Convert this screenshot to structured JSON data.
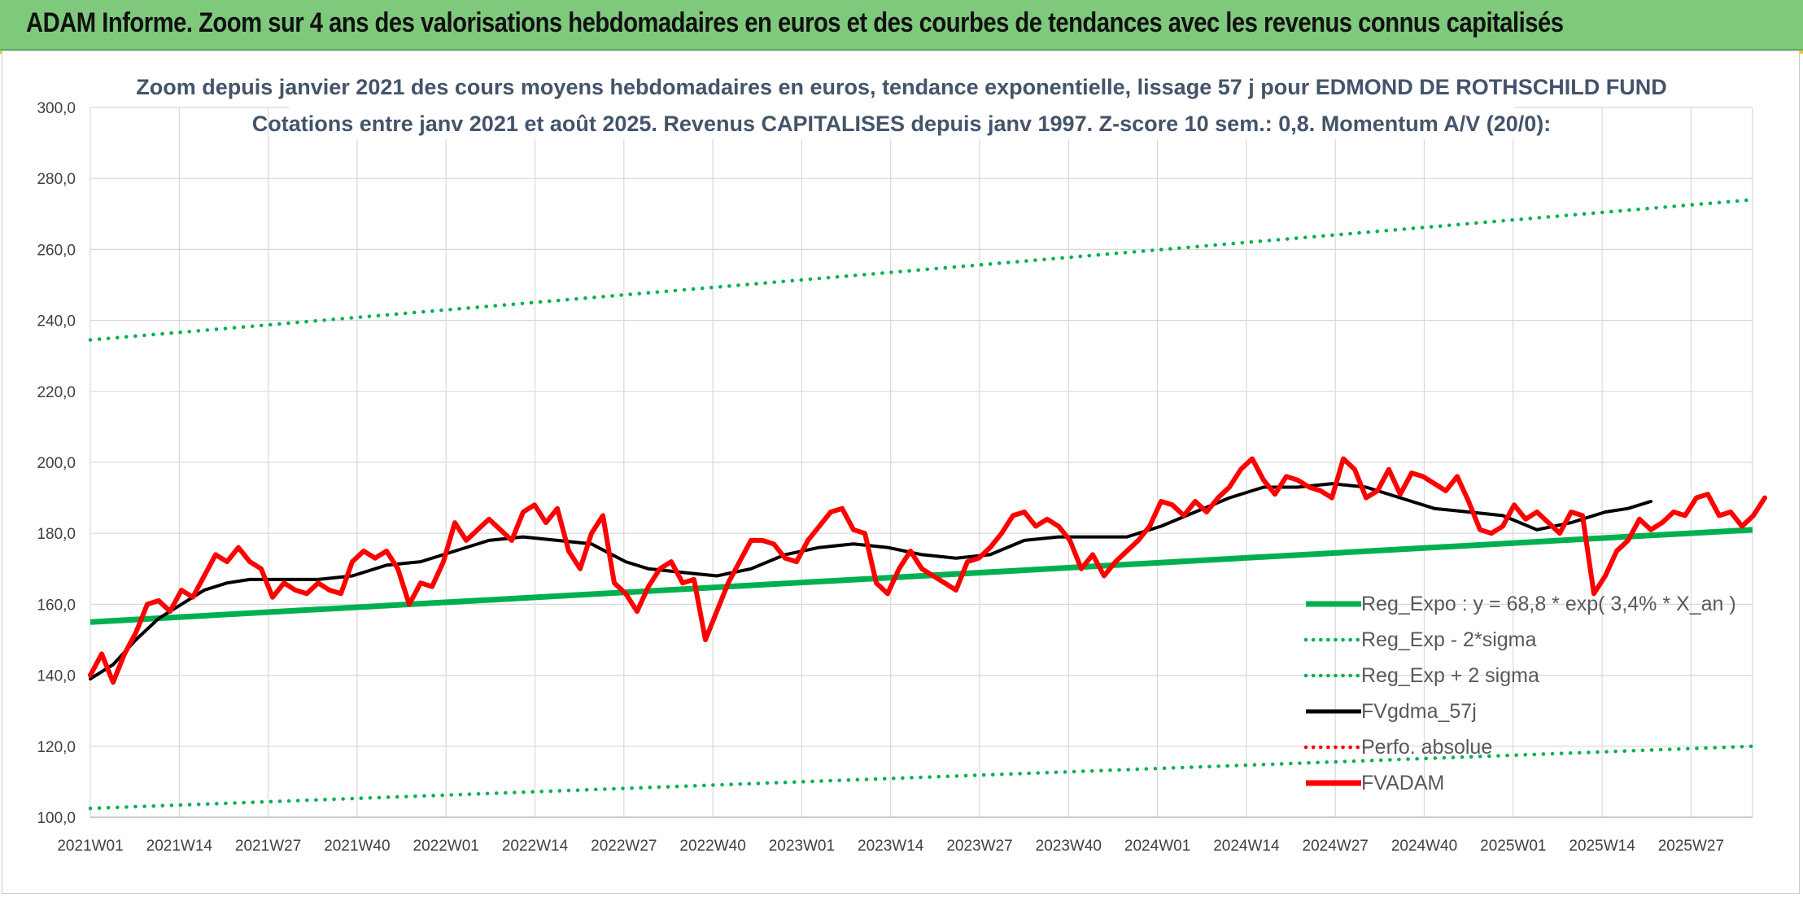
{
  "header": {
    "title": "ADAM Informe. Zoom sur 4 ans des valorisations hebdomadaires en euros et des courbes de tendances avec les revenus connus capitalisés"
  },
  "colors": {
    "banner": "#7ec97c",
    "trend_green": "#00b050",
    "price_red": "#ff0000",
    "smooth_black": "#000000",
    "title_text": "#44546a"
  },
  "chart_data": {
    "type": "line",
    "title": "Zoom depuis janvier 2021 des cours moyens hebdomadaires en euros, tendance exponentielle, lissage 57 j pour EDMOND DE ROTHSCHILD FUND",
    "subtitle": "Cotations entre janv 2021 et août 2025. Revenus CAPITALISES depuis janv 1997. Z-score 10 sem.: 0,8. Momentum A/V (20/0):",
    "xlabel": "",
    "ylabel": "",
    "ylim": [
      100,
      300
    ],
    "yticks": [
      "100,0",
      "120,0",
      "140,0",
      "160,0",
      "180,0",
      "200,0",
      "220,0",
      "240,0",
      "260,0",
      "280,0",
      "300,0"
    ],
    "x_tick_labels": [
      "2021W01",
      "2021W14",
      "2021W27",
      "2021W40",
      "2022W01",
      "2022W14",
      "2022W27",
      "2022W40",
      "2023W01",
      "2023W14",
      "2023W27",
      "2023W40",
      "2024W01",
      "2024W14",
      "2024W27",
      "2024W40",
      "2025W01",
      "2025W14",
      "2025W27"
    ],
    "x_range_weeks": [
      0,
      243
    ],
    "grid": true,
    "legend_position": "bottom-right",
    "series": [
      {
        "name": "Reg_Expo : y = 68,8 * exp( 3,4% *  X_an )",
        "style": "solid",
        "color": "#00b050",
        "start": 155.0,
        "end": 181.0
      },
      {
        "name": "Reg_Exp - 2*sigma",
        "style": "dotted",
        "color": "#00b050",
        "start": 102.5,
        "end": 120.0
      },
      {
        "name": "Reg_Exp + 2 sigma",
        "style": "dotted",
        "color": "#00b050",
        "start": 234.5,
        "end": 274.0
      },
      {
        "name": "FVgdma_57j",
        "style": "solid",
        "color": "#000000",
        "points": [
          [
            0,
            139
          ],
          [
            4,
            143
          ],
          [
            8,
            150
          ],
          [
            12,
            156
          ],
          [
            16,
            160
          ],
          [
            20,
            164
          ],
          [
            24,
            166
          ],
          [
            28,
            167
          ],
          [
            34,
            167
          ],
          [
            40,
            167
          ],
          [
            46,
            168
          ],
          [
            52,
            171
          ],
          [
            58,
            172
          ],
          [
            64,
            175
          ],
          [
            70,
            178
          ],
          [
            76,
            179
          ],
          [
            82,
            178
          ],
          [
            88,
            177
          ],
          [
            94,
            172
          ],
          [
            98,
            170
          ],
          [
            104,
            169
          ],
          [
            110,
            168
          ],
          [
            116,
            170
          ],
          [
            122,
            174
          ],
          [
            128,
            176
          ],
          [
            134,
            177
          ],
          [
            140,
            176
          ],
          [
            146,
            174
          ],
          [
            152,
            173
          ],
          [
            158,
            174
          ],
          [
            164,
            178
          ],
          [
            170,
            179
          ],
          [
            176,
            179
          ],
          [
            182,
            179
          ],
          [
            188,
            182
          ],
          [
            194,
            186
          ],
          [
            200,
            190
          ],
          [
            206,
            193
          ],
          [
            212,
            193
          ],
          [
            218,
            194
          ],
          [
            224,
            193
          ],
          [
            230,
            190
          ],
          [
            236,
            187
          ],
          [
            242,
            186
          ],
          [
            248,
            185
          ],
          [
            254,
            181
          ],
          [
            260,
            183
          ],
          [
            266,
            186
          ],
          [
            270,
            187
          ],
          [
            274,
            189
          ]
        ]
      },
      {
        "name": "Perfo. absolue",
        "style": "dotted",
        "color": "#ff0000",
        "points": []
      },
      {
        "name": "FVADAM",
        "style": "solid-thick",
        "color": "#ff0000",
        "points": [
          [
            0,
            140
          ],
          [
            2,
            146
          ],
          [
            4,
            138
          ],
          [
            6,
            146
          ],
          [
            8,
            152
          ],
          [
            10,
            160
          ],
          [
            12,
            161
          ],
          [
            14,
            158
          ],
          [
            16,
            164
          ],
          [
            18,
            162
          ],
          [
            20,
            168
          ],
          [
            22,
            174
          ],
          [
            24,
            172
          ],
          [
            26,
            176
          ],
          [
            28,
            172
          ],
          [
            30,
            170
          ],
          [
            32,
            162
          ],
          [
            34,
            166
          ],
          [
            36,
            164
          ],
          [
            38,
            163
          ],
          [
            40,
            166
          ],
          [
            42,
            164
          ],
          [
            44,
            163
          ],
          [
            46,
            172
          ],
          [
            48,
            175
          ],
          [
            50,
            173
          ],
          [
            52,
            175
          ],
          [
            54,
            170
          ],
          [
            56,
            160
          ],
          [
            58,
            166
          ],
          [
            60,
            165
          ],
          [
            62,
            172
          ],
          [
            64,
            183
          ],
          [
            66,
            178
          ],
          [
            68,
            181
          ],
          [
            70,
            184
          ],
          [
            72,
            181
          ],
          [
            74,
            178
          ],
          [
            76,
            186
          ],
          [
            78,
            188
          ],
          [
            80,
            183
          ],
          [
            82,
            187
          ],
          [
            84,
            175
          ],
          [
            86,
            170
          ],
          [
            88,
            180
          ],
          [
            90,
            185
          ],
          [
            92,
            166
          ],
          [
            94,
            163
          ],
          [
            96,
            158
          ],
          [
            98,
            165
          ],
          [
            100,
            170
          ],
          [
            102,
            172
          ],
          [
            104,
            166
          ],
          [
            106,
            167
          ],
          [
            108,
            150
          ],
          [
            110,
            158
          ],
          [
            112,
            166
          ],
          [
            114,
            172
          ],
          [
            116,
            178
          ],
          [
            118,
            178
          ],
          [
            120,
            177
          ],
          [
            122,
            173
          ],
          [
            124,
            172
          ],
          [
            126,
            178
          ],
          [
            128,
            182
          ],
          [
            130,
            186
          ],
          [
            132,
            187
          ],
          [
            134,
            181
          ],
          [
            136,
            180
          ],
          [
            138,
            166
          ],
          [
            140,
            163
          ],
          [
            142,
            170
          ],
          [
            144,
            175
          ],
          [
            146,
            170
          ],
          [
            148,
            168
          ],
          [
            150,
            166
          ],
          [
            152,
            164
          ],
          [
            154,
            172
          ],
          [
            156,
            173
          ],
          [
            158,
            176
          ],
          [
            160,
            180
          ],
          [
            162,
            185
          ],
          [
            164,
            186
          ],
          [
            166,
            182
          ],
          [
            168,
            184
          ],
          [
            170,
            182
          ],
          [
            172,
            178
          ],
          [
            174,
            170
          ],
          [
            176,
            174
          ],
          [
            178,
            168
          ],
          [
            180,
            172
          ],
          [
            182,
            175
          ],
          [
            184,
            178
          ],
          [
            186,
            182
          ],
          [
            188,
            189
          ],
          [
            190,
            188
          ],
          [
            192,
            185
          ],
          [
            194,
            189
          ],
          [
            196,
            186
          ],
          [
            198,
            190
          ],
          [
            200,
            193
          ],
          [
            202,
            198
          ],
          [
            204,
            201
          ],
          [
            206,
            195
          ],
          [
            208,
            191
          ],
          [
            210,
            196
          ],
          [
            212,
            195
          ],
          [
            214,
            193
          ],
          [
            216,
            192
          ],
          [
            218,
            190
          ],
          [
            220,
            201
          ],
          [
            222,
            198
          ],
          [
            224,
            190
          ],
          [
            226,
            192
          ],
          [
            228,
            198
          ],
          [
            230,
            191
          ],
          [
            232,
            197
          ],
          [
            234,
            196
          ],
          [
            236,
            194
          ],
          [
            238,
            192
          ],
          [
            240,
            196
          ],
          [
            242,
            189
          ],
          [
            244,
            181
          ],
          [
            246,
            180
          ],
          [
            248,
            182
          ],
          [
            250,
            188
          ],
          [
            252,
            184
          ],
          [
            254,
            186
          ],
          [
            256,
            183
          ],
          [
            258,
            180
          ],
          [
            260,
            186
          ],
          [
            262,
            185
          ],
          [
            264,
            163
          ],
          [
            266,
            168
          ],
          [
            268,
            175
          ],
          [
            270,
            178
          ],
          [
            272,
            184
          ],
          [
            274,
            181
          ],
          [
            276,
            183
          ],
          [
            278,
            186
          ],
          [
            280,
            185
          ],
          [
            282,
            190
          ],
          [
            284,
            191
          ],
          [
            286,
            185
          ],
          [
            288,
            186
          ],
          [
            290,
            182
          ],
          [
            292,
            185
          ],
          [
            294,
            190
          ]
        ]
      }
    ]
  }
}
